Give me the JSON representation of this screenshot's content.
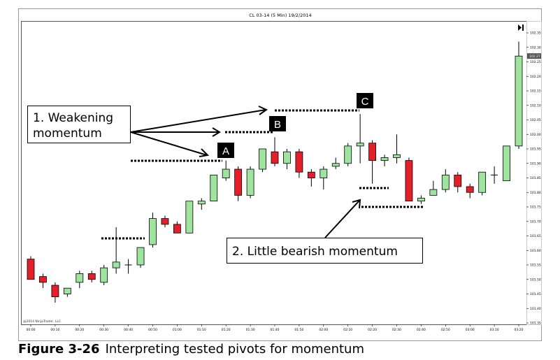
{
  "chart_data": {
    "type": "candlestick",
    "title": "CL 03-14 (5 Min)  19/2/2014",
    "copyright": "@2014 NinjaTrader, LLC",
    "ylim": [
      101.35,
      102.37
    ],
    "y_ticks": [
      "102.35",
      "102.30",
      "102.25",
      "102.20",
      "102.15",
      "102.10",
      "102.05",
      "102.00",
      "101.95",
      "101.90",
      "101.85",
      "101.80",
      "101.75",
      "101.70",
      "101.65",
      "101.60",
      "101.55",
      "101.50",
      "101.45",
      "101.40",
      "101.35"
    ],
    "last_price_label": "102.27",
    "x_ticks": [
      "00:00",
      "00:10",
      "00:20",
      "00:30",
      "00:40",
      "00:50",
      "01:00",
      "01:10",
      "01:20",
      "01:30",
      "01:40",
      "01:50",
      "02:00",
      "02:10",
      "02:20",
      "02:30",
      "02:40",
      "02:50",
      "03:00",
      "03:10",
      "03:20"
    ],
    "candles": [
      {
        "t": 0,
        "o": 101.57,
        "h": 101.58,
        "l": 101.5,
        "c": 101.5
      },
      {
        "t": 1,
        "o": 101.51,
        "h": 101.52,
        "l": 101.47,
        "c": 101.49
      },
      {
        "t": 2,
        "o": 101.48,
        "h": 101.49,
        "l": 101.42,
        "c": 101.44
      },
      {
        "t": 3,
        "o": 101.45,
        "h": 101.47,
        "l": 101.44,
        "c": 101.47
      },
      {
        "t": 4,
        "o": 101.49,
        "h": 101.53,
        "l": 101.47,
        "c": 101.52
      },
      {
        "t": 5,
        "o": 101.52,
        "h": 101.53,
        "l": 101.49,
        "c": 101.5
      },
      {
        "t": 6,
        "o": 101.49,
        "h": 101.55,
        "l": 101.48,
        "c": 101.54
      },
      {
        "t": 7,
        "o": 101.54,
        "h": 101.68,
        "l": 101.52,
        "c": 101.56
      },
      {
        "t": 8,
        "o": 101.55,
        "h": 101.57,
        "l": 101.52,
        "c": 101.55
      },
      {
        "t": 9,
        "o": 101.55,
        "h": 101.61,
        "l": 101.54,
        "c": 101.61
      },
      {
        "t": 10,
        "o": 101.62,
        "h": 101.73,
        "l": 101.61,
        "c": 101.71
      },
      {
        "t": 11,
        "o": 101.71,
        "h": 101.72,
        "l": 101.68,
        "c": 101.69
      },
      {
        "t": 12,
        "o": 101.69,
        "h": 101.7,
        "l": 101.66,
        "c": 101.66
      },
      {
        "t": 13,
        "o": 101.66,
        "h": 101.77,
        "l": 101.66,
        "c": 101.77
      },
      {
        "t": 14,
        "o": 101.76,
        "h": 101.78,
        "l": 101.74,
        "c": 101.77
      },
      {
        "t": 15,
        "o": 101.77,
        "h": 101.86,
        "l": 101.77,
        "c": 101.86
      },
      {
        "t": 16,
        "o": 101.85,
        "h": 101.91,
        "l": 101.84,
        "c": 101.88
      },
      {
        "t": 17,
        "o": 101.88,
        "h": 101.89,
        "l": 101.77,
        "c": 101.79
      },
      {
        "t": 18,
        "o": 101.79,
        "h": 101.89,
        "l": 101.78,
        "c": 101.88
      },
      {
        "t": 19,
        "o": 101.88,
        "h": 101.95,
        "l": 101.87,
        "c": 101.95
      },
      {
        "t": 20,
        "o": 101.94,
        "h": 101.99,
        "l": 101.89,
        "c": 101.9
      },
      {
        "t": 21,
        "o": 101.9,
        "h": 101.95,
        "l": 101.88,
        "c": 101.94
      },
      {
        "t": 22,
        "o": 101.94,
        "h": 101.95,
        "l": 101.85,
        "c": 101.87
      },
      {
        "t": 23,
        "o": 101.87,
        "h": 101.88,
        "l": 101.82,
        "c": 101.85
      },
      {
        "t": 24,
        "o": 101.85,
        "h": 101.89,
        "l": 101.81,
        "c": 101.88
      },
      {
        "t": 25,
        "o": 101.89,
        "h": 101.92,
        "l": 101.88,
        "c": 101.9
      },
      {
        "t": 26,
        "o": 101.9,
        "h": 101.97,
        "l": 101.89,
        "c": 101.96
      },
      {
        "t": 27,
        "o": 101.96,
        "h": 102.07,
        "l": 101.9,
        "c": 101.97
      },
      {
        "t": 28,
        "o": 101.97,
        "h": 101.98,
        "l": 101.83,
        "c": 101.91
      },
      {
        "t": 29,
        "o": 101.91,
        "h": 101.93,
        "l": 101.89,
        "c": 101.92
      },
      {
        "t": 30,
        "o": 101.92,
        "h": 102.0,
        "l": 101.9,
        "c": 101.93
      },
      {
        "t": 31,
        "o": 101.91,
        "h": 101.92,
        "l": 101.77,
        "c": 101.77
      },
      {
        "t": 32,
        "o": 101.77,
        "h": 101.79,
        "l": 101.76,
        "c": 101.78
      },
      {
        "t": 33,
        "o": 101.79,
        "h": 101.84,
        "l": 101.79,
        "c": 101.81
      },
      {
        "t": 34,
        "o": 101.81,
        "h": 101.88,
        "l": 101.8,
        "c": 101.86
      },
      {
        "t": 35,
        "o": 101.86,
        "h": 101.87,
        "l": 101.8,
        "c": 101.82
      },
      {
        "t": 36,
        "o": 101.82,
        "h": 101.83,
        "l": 101.78,
        "c": 101.8
      },
      {
        "t": 37,
        "o": 101.8,
        "h": 101.87,
        "l": 101.79,
        "c": 101.87
      },
      {
        "t": 38,
        "o": 101.86,
        "h": 101.89,
        "l": 101.83,
        "c": 101.86
      },
      {
        "t": 39,
        "o": 101.84,
        "h": 101.96,
        "l": 101.84,
        "c": 101.96
      },
      {
        "t": 40,
        "o": 101.96,
        "h": 102.32,
        "l": 101.95,
        "c": 102.27
      }
    ],
    "annotations": {
      "label_a": "A",
      "label_b": "B",
      "label_c": "C",
      "callout_1": [
        "1. Weakening",
        "momentum"
      ],
      "callout_2": "2. Little bearish momentum"
    },
    "colors": {
      "up": "#9ee39e",
      "down": "#e3202a",
      "outline": "#000000"
    }
  },
  "caption": {
    "label": "Figure 3-26",
    "text": "Interpreting tested pivots for momentum"
  }
}
